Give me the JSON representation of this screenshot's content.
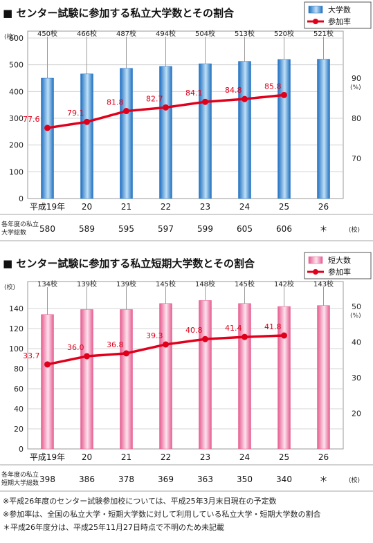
{
  "chart_data": [
    {
      "type": "bar+line",
      "title": "■ センター試験に参加する私立大学数とその割合",
      "ylabel_left_unit": "(校)",
      "ylabel_right_unit": "(%)",
      "ylim_left": [
        0,
        600
      ],
      "ylim_right": [
        60,
        100
      ],
      "left_ticks": [
        "0",
        "100",
        "200",
        "300",
        "400",
        "500",
        "600"
      ],
      "right_ticks": [
        "70",
        "80",
        "90"
      ],
      "right_tick_values": [
        70,
        80,
        90
      ],
      "categories": [
        "平成19年",
        "20",
        "21",
        "22",
        "23",
        "24",
        "25",
        "26"
      ],
      "legend": {
        "bar": "大学数",
        "line": "参加率",
        "placement": "top-right"
      },
      "bar_colors": {
        "dark": "#1f6fc0",
        "light": "#bfe0f7"
      },
      "line_color": "#e0001b",
      "bars": [
        {
          "name": "大学数",
          "values": [
            450,
            466,
            487,
            494,
            504,
            513,
            520,
            521
          ],
          "labels": [
            "450校",
            "466校",
            "487校",
            "494校",
            "504校",
            "513校",
            "520校",
            "521校"
          ]
        }
      ],
      "line": {
        "name": "参加率",
        "values": [
          77.6,
          79.1,
          81.8,
          82.7,
          84.1,
          84.8,
          85.8,
          null
        ],
        "labels": [
          "77.6",
          "79.1",
          "81.8",
          "82.7",
          "84.1",
          "84.8",
          "85.8",
          ""
        ]
      },
      "total_row": {
        "label_line1": "各年度の私立",
        "label_line2": "大学総数",
        "values": [
          "580",
          "589",
          "595",
          "597",
          "599",
          "605",
          "606",
          "＊"
        ],
        "unit": "(校)"
      }
    },
    {
      "type": "bar+line",
      "title": "■ センター試験に参加する私立短期大学数とその割合",
      "ylabel_left_unit": "(校)",
      "ylabel_right_unit": "(%)",
      "ylim_left": [
        0,
        160
      ],
      "ylim_right": [
        10,
        55
      ],
      "left_ticks": [
        "0",
        "20",
        "40",
        "60",
        "80",
        "100",
        "120",
        "140"
      ],
      "right_ticks": [
        "20",
        "30",
        "40",
        "50"
      ],
      "right_tick_values": [
        20,
        30,
        40,
        50
      ],
      "categories": [
        "平成19年",
        "20",
        "21",
        "22",
        "23",
        "24",
        "25",
        "26"
      ],
      "legend": {
        "bar": "短大数",
        "line": "参加率",
        "placement": "top-right"
      },
      "bar_colors": {
        "dark": "#e65c8f",
        "light": "#fde3ee"
      },
      "line_color": "#e0001b",
      "bars": [
        {
          "name": "短大数",
          "values": [
            134,
            139,
            139,
            145,
            148,
            145,
            142,
            143
          ],
          "labels": [
            "134校",
            "139校",
            "139校",
            "145校",
            "148校",
            "145校",
            "142校",
            "143校"
          ]
        }
      ],
      "line": {
        "name": "参加率",
        "values": [
          33.7,
          36.0,
          36.8,
          39.3,
          40.8,
          41.4,
          41.8,
          null
        ],
        "labels": [
          "33.7",
          "36.0",
          "36.8",
          "39.3",
          "40.8",
          "41.4",
          "41.8",
          ""
        ]
      },
      "total_row": {
        "label_line1": "各年度の私立",
        "label_line2": "短期大学総数",
        "values": [
          "398",
          "386",
          "378",
          "369",
          "363",
          "350",
          "340",
          "＊"
        ],
        "unit": "(校)"
      }
    }
  ],
  "notes": [
    "※平成26年度のセンター試験参加校については、平成25年3月末日現在の予定数",
    "※参加率は、全国の私立大学・短期大学数に対して利用している私立大学・短期大学数の割合",
    "＊平成26年度分は、平成25年11月27日時点で不明のため未記載"
  ]
}
